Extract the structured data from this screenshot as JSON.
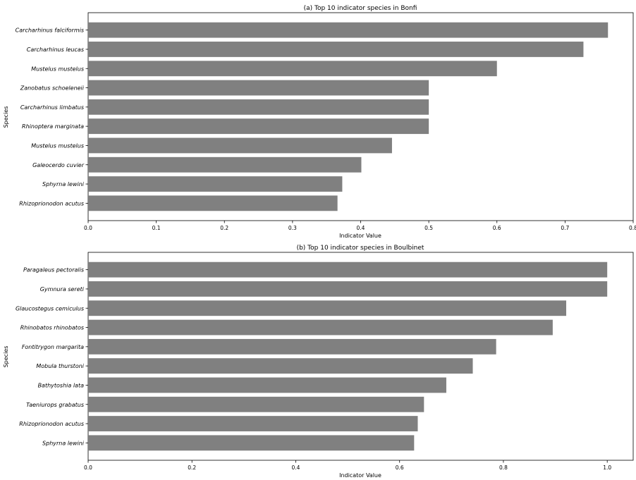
{
  "chart_data": [
    {
      "type": "bar",
      "orientation": "horizontal",
      "title": "(a) Top 10 indicator species in Bonfi",
      "xlabel": "Indicator Value",
      "ylabel": "Species",
      "xlim": [
        0,
        0.8
      ],
      "xticks": [
        "0.0",
        "0.1",
        "0.2",
        "0.3",
        "0.4",
        "0.5",
        "0.6",
        "0.7",
        "0.8"
      ],
      "xtick_values": [
        0,
        0.1,
        0.2,
        0.3,
        0.4,
        0.5,
        0.6,
        0.7,
        0.8
      ],
      "categories": [
        "Carcharhinus falciformis",
        "Carcharhinus leucas",
        "Mustelus mustelus",
        "Zanobatus schoeleneii",
        "Carcharhinus limbatus",
        "Rhinoptera marginata",
        "Mustelus mustelus",
        "Galeocerdo cuvier",
        "Sphyrna lewini",
        "Rhizoprionodon acutus"
      ],
      "values": [
        0.763,
        0.727,
        0.6,
        0.5,
        0.5,
        0.5,
        0.446,
        0.401,
        0.373,
        0.366
      ],
      "bar_color": "#808080",
      "grid": false
    },
    {
      "type": "bar",
      "orientation": "horizontal",
      "title": "(b) Top 10 indicator species in Boulbinet",
      "xlabel": "Indicator Value",
      "ylabel": "Species",
      "xlim": [
        0,
        1.05
      ],
      "xticks": [
        "0.0",
        "0.2",
        "0.4",
        "0.6",
        "0.8",
        "1.0"
      ],
      "xtick_values": [
        0,
        0.2,
        0.4,
        0.6,
        0.8,
        1.0
      ],
      "categories": [
        "Paragaleus pectoralis",
        "Gymnura sereti",
        "Glaucostegus cemiculus",
        "Rhinobatos rhinobatos",
        "Fontitrygon margarita",
        "Mobula thurstoni",
        "Bathytoshia lata",
        "Taeniurops grabatus",
        "Rhizoprionodon acutus",
        "Sphyrna lewini"
      ],
      "values": [
        1.0,
        1.0,
        0.921,
        0.895,
        0.786,
        0.741,
        0.69,
        0.647,
        0.635,
        0.628
      ],
      "bar_color": "#808080",
      "grid": false
    }
  ]
}
